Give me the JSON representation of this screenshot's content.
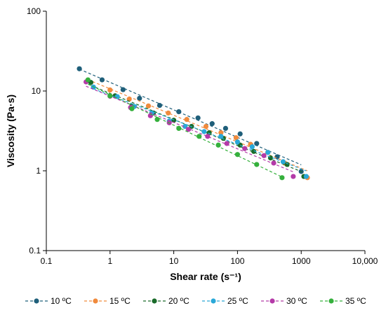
{
  "chart_data": {
    "type": "scatter",
    "xlabel": "Shear rate (s⁻¹)",
    "ylabel": "Viscosity (Pa·s)",
    "x_scale": "log",
    "y_scale": "log",
    "xlim": [
      0.1,
      10000
    ],
    "ylim": [
      0.1,
      100
    ],
    "x_ticks": [
      0.1,
      1,
      10,
      100,
      1000,
      10000
    ],
    "x_tick_labels": [
      "0.1",
      "1",
      "10",
      "100",
      "1000",
      "10,000"
    ],
    "y_ticks": [
      0.1,
      1,
      10,
      100
    ],
    "y_tick_labels": [
      "0.1",
      "1",
      "10",
      "100"
    ],
    "grid": false,
    "legend_position": "bottom",
    "series": [
      {
        "name": "10 ºC",
        "color": "#1f5f7a",
        "x": [
          0.33,
          0.75,
          1.6,
          2.9,
          6,
          12,
          24,
          40,
          65,
          110,
          200,
          420,
          1000
        ],
        "y": [
          19.0,
          13.8,
          10.4,
          8.1,
          6.6,
          5.5,
          4.6,
          3.9,
          3.4,
          2.9,
          2.2,
          1.5,
          0.98
        ]
      },
      {
        "name": "15 ºC",
        "color": "#f08a3c",
        "x": [
          0.45,
          1.0,
          2.0,
          4.0,
          8.2,
          16,
          32,
          55,
          95,
          160,
          300,
          550,
          1250
        ],
        "y": [
          13.5,
          10.3,
          7.9,
          6.5,
          5.3,
          4.4,
          3.6,
          3.0,
          2.6,
          2.15,
          1.7,
          1.25,
          0.82
        ]
      },
      {
        "name": "20 ºC",
        "color": "#1a6b2a",
        "x": [
          0.5,
          1.2,
          2.2,
          4.8,
          10,
          19,
          36,
          60,
          110,
          180,
          330,
          600,
          1100
        ],
        "y": [
          12.8,
          8.7,
          6.5,
          5.3,
          4.3,
          3.6,
          3.0,
          2.55,
          2.1,
          1.75,
          1.45,
          1.2,
          0.85
        ]
      },
      {
        "name": "25 ºC",
        "color": "#2aa8d8",
        "x": [
          0.55,
          1.3,
          2.4,
          4.5,
          8.5,
          15,
          30,
          55,
          100,
          170,
          300,
          520,
          1200
        ],
        "y": [
          11.2,
          8.5,
          6.4,
          5.3,
          4.2,
          3.6,
          3.1,
          2.7,
          2.3,
          2.0,
          1.7,
          1.3,
          0.85
        ]
      },
      {
        "name": "30 ºC",
        "color": "#b43aa8",
        "x": [
          0.42,
          1.0,
          2.1,
          4.3,
          8.5,
          17,
          34,
          68,
          130,
          260,
          370,
          750
        ],
        "y": [
          13.0,
          8.6,
          6.2,
          4.9,
          4.0,
          3.3,
          2.7,
          2.2,
          1.9,
          1.55,
          1.25,
          0.85
        ]
      },
      {
        "name": "35 ºC",
        "color": "#35b03c",
        "x": [
          0.45,
          1.0,
          2.2,
          5.5,
          12,
          25,
          50,
          100,
          200,
          500
        ],
        "y": [
          13.8,
          8.7,
          6.0,
          4.4,
          3.4,
          2.7,
          2.1,
          1.6,
          1.2,
          0.82
        ]
      }
    ]
  }
}
